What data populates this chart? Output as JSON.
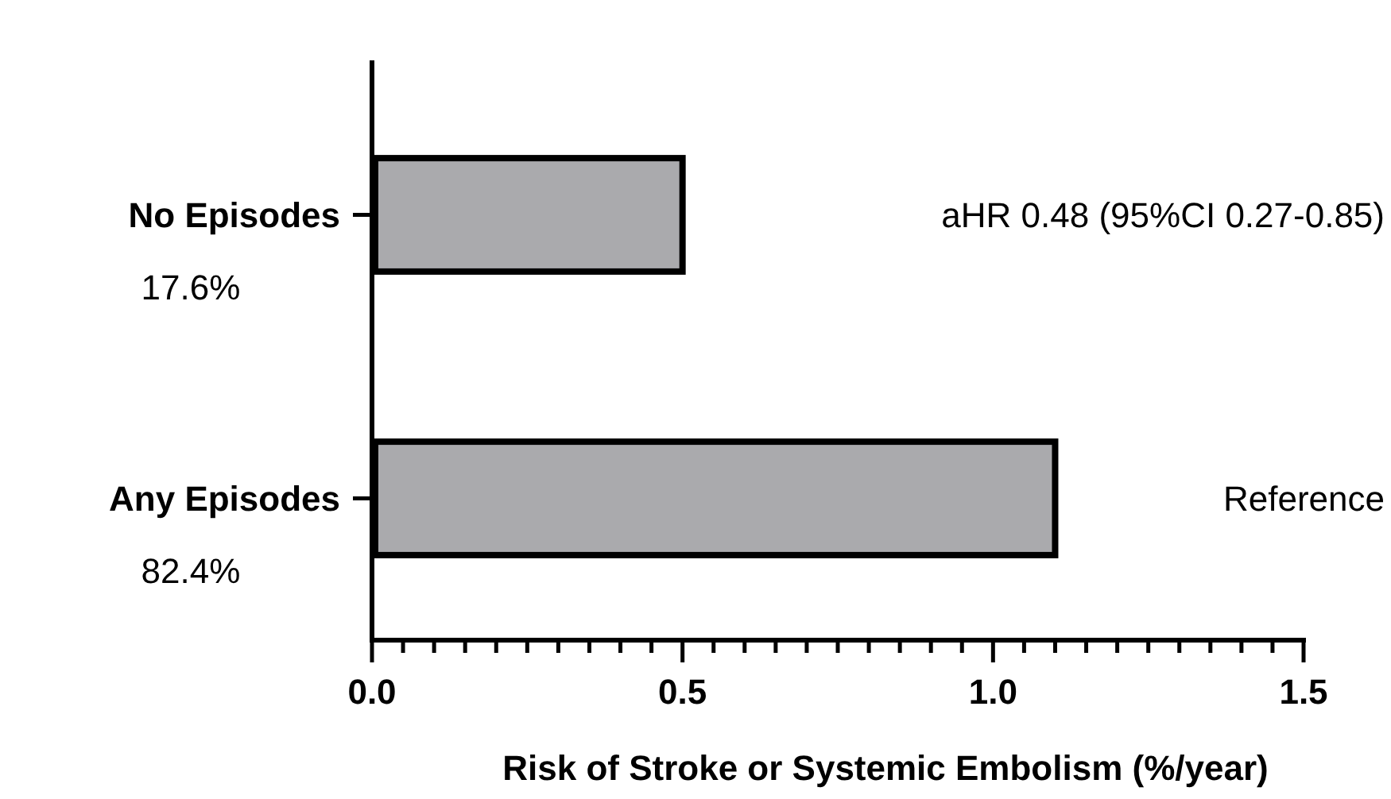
{
  "chart_data": {
    "type": "bar",
    "orientation": "horizontal",
    "categories": [
      "No Episodes",
      "Any Episodes"
    ],
    "values": [
      0.5,
      1.1
    ],
    "color": "#aaaaad",
    "xlim": [
      0,
      1.5
    ],
    "xticks": [
      {
        "value": 0,
        "label": "0.0"
      },
      {
        "value": 0.05,
        "label": null
      },
      {
        "value": 0.1,
        "label": null
      },
      {
        "value": 0.15,
        "label": null
      },
      {
        "value": 0.2,
        "label": null
      },
      {
        "value": 0.25,
        "label": null
      },
      {
        "value": 0.3,
        "label": null
      },
      {
        "value": 0.35,
        "label": null
      },
      {
        "value": 0.4,
        "label": null
      },
      {
        "value": 0.45,
        "label": null
      },
      {
        "value": 0.5,
        "label": "0.5"
      },
      {
        "value": 0.55,
        "label": null
      },
      {
        "value": 0.6,
        "label": null
      },
      {
        "value": 0.65,
        "label": null
      },
      {
        "value": 0.7,
        "label": null
      },
      {
        "value": 0.75,
        "label": null
      },
      {
        "value": 0.8,
        "label": null
      },
      {
        "value": 0.85,
        "label": null
      },
      {
        "value": 0.9,
        "label": null
      },
      {
        "value": 0.95,
        "label": null
      },
      {
        "value": 1,
        "label": "1.0"
      },
      {
        "value": 1.05,
        "label": null
      },
      {
        "value": 1.1,
        "label": null
      },
      {
        "value": 1.15,
        "label": null
      },
      {
        "value": 1.2,
        "label": null
      },
      {
        "value": 1.25,
        "label": null
      },
      {
        "value": 1.3,
        "label": null
      },
      {
        "value": 1.35,
        "label": null
      },
      {
        "value": 1.4,
        "label": null
      },
      {
        "value": 1.45,
        "label": null
      },
      {
        "value": 1.5,
        "label": "1.5"
      }
    ],
    "xlabel": "Risk of Stroke or Systemic Embolism (%/year)",
    "annotations": [
      "17.6%",
      "82.4%",
      "aHR 0.48 (95%CI 0.27-0.85)",
      "Reference"
    ]
  }
}
